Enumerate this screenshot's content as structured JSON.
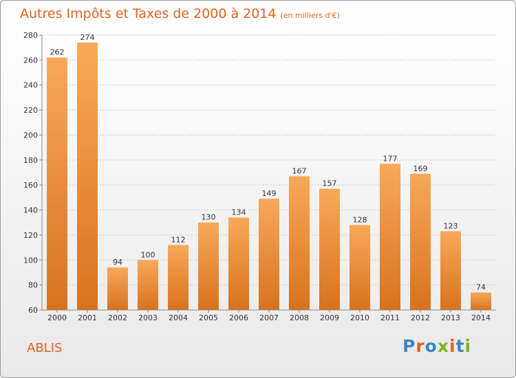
{
  "header": {
    "title": "Autres Impôts et Taxes de 2000 à 2014",
    "subtitle": "(en milliers d'€)"
  },
  "footer": {
    "place": "ABLIS",
    "logo": "Proxiti"
  },
  "colors": {
    "bar_light": "#f7a95a",
    "bar_dark": "#d9721c",
    "title": "#e3631a",
    "grid": "#cccccc"
  },
  "chart_data": {
    "type": "bar",
    "title": "Autres Impôts et Taxes de 2000 à 2014",
    "subtitle": "(en milliers d'€)",
    "xlabel": "",
    "ylabel": "",
    "categories": [
      "2000",
      "2001",
      "2002",
      "2003",
      "2004",
      "2005",
      "2006",
      "2007",
      "2008",
      "2009",
      "2010",
      "2011",
      "2012",
      "2013",
      "2014"
    ],
    "values": [
      262,
      274,
      94,
      100,
      112,
      130,
      134,
      149,
      167,
      157,
      128,
      177,
      169,
      123,
      74
    ],
    "ylim": [
      60,
      280
    ],
    "yticks": [
      60,
      80,
      100,
      120,
      140,
      160,
      180,
      200,
      220,
      240,
      260,
      280
    ],
    "grid": true,
    "legend": "none"
  }
}
